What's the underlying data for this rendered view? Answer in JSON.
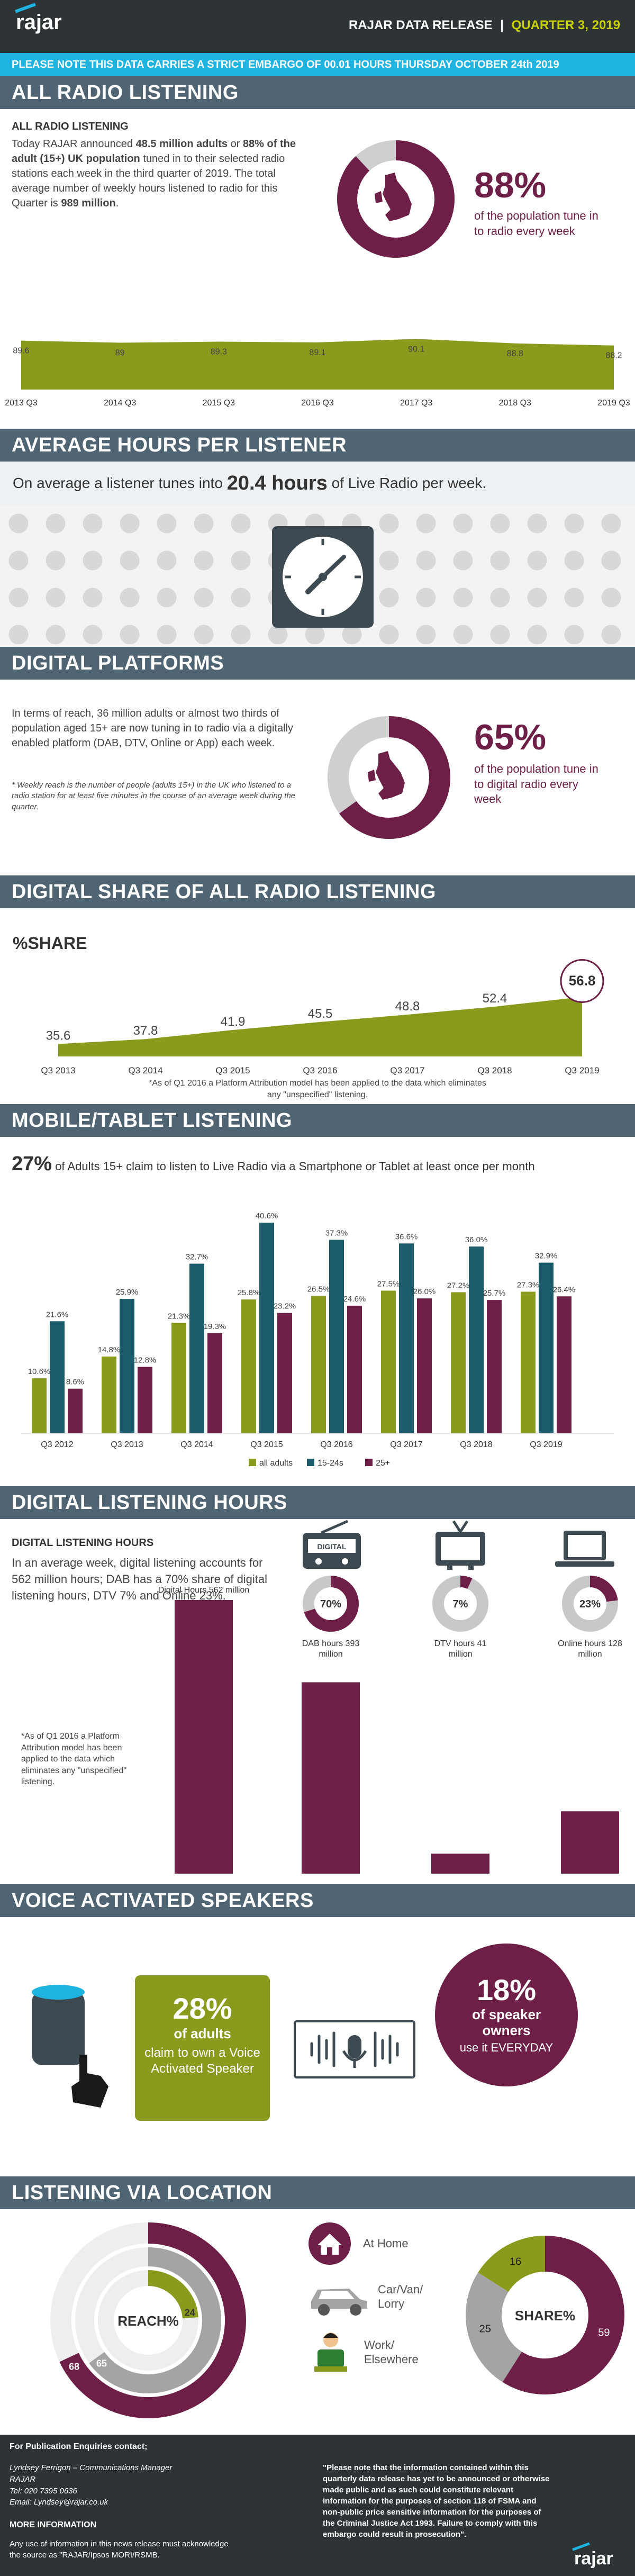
{
  "colors": {
    "header": "#2e3336",
    "band": "#506573",
    "plum": "#6e1f47",
    "olive": "#8a9a1c",
    "teal": "#1b5b6b",
    "gray": "#a4a4a4",
    "accent": "#1fb3e0"
  },
  "header": {
    "logo": "rajar",
    "release_prefix": "RAJAR DATA RELEASE",
    "sep": "|",
    "quarter": "QUARTER 3, 2019"
  },
  "embargo": "PLEASE NOTE THIS DATA CARRIES A STRICT EMBARGO OF 00.01 HOURS THURSDAY OCTOBER 24th 2019",
  "all_radio": {
    "title": "ALL RADIO LISTENING",
    "subtitle": "ALL RADIO LISTENING",
    "p1": "Today RAJAR announced",
    "b1": "48.5 million adults",
    "p2": "or",
    "b2": "88% of the adult (15+) UK population",
    "p3": "tuned in to their selected radio stations each week in the third quarter of 2019.",
    "p4": "The total average number of weekly hours listened to radio for this Quarter is",
    "b3": "989 million",
    "p5": ".",
    "pct": "88%",
    "pct_text": "of the population tune in to radio every week"
  },
  "avg_hours": {
    "title": "AVERAGE HOURS PER LISTENER",
    "pre": "On average a listener tunes into",
    "bold": "20.4 hours",
    "post": "of Live Radio per week."
  },
  "digital_platforms": {
    "title": "DIGITAL PLATFORMS",
    "body": "In terms of reach, 36 million adults or almost two thirds of population aged 15+ are now tuning in to radio via a digitally enabled platform (DAB, DTV, Online or App) each week.",
    "note": "* Weekly reach is the number of people (adults 15+) in the UK who listened to a radio station for at least five minutes in the course of an average week during the quarter.",
    "pct": "65%",
    "pct_text": "of the population tune in to digital radio every week"
  },
  "digital_share": {
    "title": "DIGITAL SHARE OF ALL RADIO LISTENING",
    "subtitle": "%SHARE",
    "note1": "*As of Q1 2016 a Platform Attribution model has been applied to the data which eliminates",
    "note2": "any \"unspecified\" listening."
  },
  "mobile": {
    "title": "MOBILE/TABLET LISTENING",
    "pct": "27%",
    "text": "of Adults 15+ claim to listen to Live Radio via a Smartphone or Tablet at least once per month"
  },
  "digital_hours": {
    "title": "DIGITAL LISTENING HOURS",
    "subtitle": "DIGITAL LISTENING HOURS",
    "body": "In an average week, digital listening accounts for 562 million hours; DAB has a 70% share of digital listening hours, DTV 7% and Online 23%.",
    "note": "*As of Q1 2016 a Platform Attribution model has been applied to the data which eliminates any \"unspecified\" listening.",
    "radio_label": "DIGITAL",
    "donuts": [
      {
        "label": "70%",
        "value": 70
      },
      {
        "label": "7%",
        "value": 7
      },
      {
        "label": "23%",
        "value": 23
      }
    ]
  },
  "voice": {
    "title": "VOICE ACTIVATED SPEAKERS",
    "pct1": "28%",
    "t1a": "of adults",
    "t1b": "claim to own a Voice Activated Speaker",
    "pct2": "18%",
    "t2a": "of speaker owners",
    "t2b": "use it EVERYDAY"
  },
  "location": {
    "title": "LISTENING VIA LOCATION",
    "reach_label": "REACH%",
    "share_label": "SHARE%",
    "legend": [
      "At Home",
      "Car/Van/ Lorry",
      "Work/ Elsewhere"
    ]
  },
  "footer": {
    "enq": "For Publication Enquiries contact;",
    "name": "Lyndsey Ferrigon – Communications Manager",
    "org": "RAJAR",
    "tel": "Tel: 020 7395 0636",
    "email": "Email: Lyndsey@rajar.co.uk",
    "more": "MORE INFORMATION",
    "ack": "Any use of information in this news release must acknowledge the source as \"RAJAR/Ipsos MORI/RSMB.",
    "quote": "\"Please note that the information contained within this quarterly data release has yet to be announced or otherwise made public and as such could constitute relevant information for the purposes of section 118 of FSMA and non-public price sensitive information for the purposes of the Criminal Justice Act 1993. Failure to comply with this embargo could result in prosecution\".",
    "logo": "rajar"
  },
  "chart_data": [
    {
      "id": "all_radio_reach",
      "type": "area",
      "categories": [
        "2013 Q3",
        "2014 Q3",
        "2015 Q3",
        "2016 Q3",
        "2017 Q3",
        "2018 Q3",
        "2019 Q3"
      ],
      "values": [
        89.6,
        89,
        89.3,
        89.1,
        90.1,
        88.8,
        88.2
      ],
      "labels": [
        "89.6",
        "89",
        "89.3",
        "89.1",
        "90.1",
        "88.8",
        "88.2"
      ]
    },
    {
      "id": "digital_share",
      "type": "area",
      "categories": [
        "Q3 2013",
        "Q3 2014",
        "Q3 2015",
        "Q3 2016",
        "Q3 2017",
        "Q3 2018",
        "Q3 2019"
      ],
      "values": [
        35.6,
        37.8,
        41.9,
        45.5,
        48.8,
        52.4,
        56.8
      ],
      "labels": [
        "35.6",
        "37.8",
        "41.9",
        "45.5",
        "48.8",
        "52.4",
        "56.8"
      ]
    },
    {
      "id": "mobile_tablet",
      "type": "bar",
      "categories": [
        "Q3 2012",
        "Q3 2013",
        "Q3 2014",
        "Q3 2015",
        "Q3 2016",
        "Q3 2017",
        "Q3 2018",
        "Q3 2019"
      ],
      "series": [
        {
          "name": "all adults",
          "color": "#8a9a1c",
          "values": [
            10.6,
            14.8,
            21.3,
            25.8,
            26.5,
            27.5,
            27.2,
            27.3
          ],
          "labels": [
            "10.6%",
            "14.8%",
            "21.3%",
            "25.8%",
            "26.5%",
            "27.5%",
            "27.2%",
            "27.3%"
          ]
        },
        {
          "name": "15-24s",
          "color": "#1b5b6b",
          "values": [
            21.6,
            25.9,
            32.7,
            40.6,
            37.3,
            36.6,
            36.0,
            32.9
          ],
          "labels": [
            "21.6%",
            "25.9%",
            "32.7%",
            "40.6%",
            "37.3%",
            "36.6%",
            "36.0%",
            "32.9%"
          ]
        },
        {
          "name": "25+",
          "color": "#6e1f47",
          "values": [
            8.6,
            12.8,
            19.3,
            23.2,
            24.6,
            26.0,
            25.7,
            26.4
          ],
          "labels": [
            "8.6%",
            "12.8%",
            "19.3%",
            "23.2%",
            "24.6%",
            "26.0%",
            "25.7%",
            "26.4%"
          ]
        }
      ]
    },
    {
      "id": "digital_hours",
      "type": "bar",
      "categories": [
        "Digital Hours 562 million",
        "DAB hours 393 million",
        "DTV hours 41 million",
        "Online hours 128 million"
      ],
      "values": [
        562,
        393,
        41,
        128
      ]
    },
    {
      "id": "reach_by_location",
      "type": "pie",
      "categories": [
        "At Home",
        "Car/Van/ Lorry",
        "Work/ Elsewhere"
      ],
      "values": [
        68,
        65,
        24
      ],
      "labels": [
        "68",
        "65",
        "24"
      ]
    },
    {
      "id": "share_by_location",
      "type": "pie",
      "categories": [
        "At Home",
        "Car/Van/ Lorry",
        "Work/ Elsewhere"
      ],
      "values": [
        59,
        25,
        16
      ],
      "labels": [
        "59",
        "25",
        "16"
      ]
    }
  ]
}
